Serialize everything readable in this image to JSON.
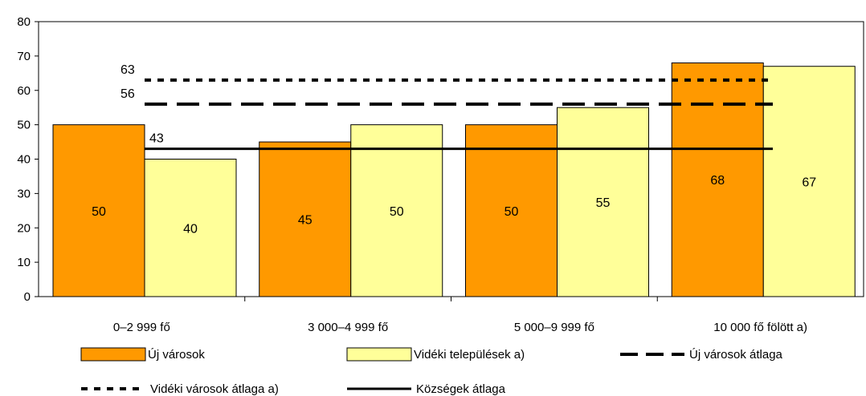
{
  "chart_data": {
    "type": "bar",
    "categories": [
      "0–2 999 fő",
      "3 000–4 999 fő",
      "5 000–9 999 fő",
      "10 000 fő fölött a)"
    ],
    "series": [
      {
        "name": "Új városok",
        "values": [
          50,
          45,
          50,
          68
        ],
        "color": "#ff9900",
        "data_labels": [
          "50",
          "45",
          "50",
          "68"
        ]
      },
      {
        "name": "Vidéki települések a)",
        "values": [
          40,
          50,
          55,
          67
        ],
        "color": "#ffff99",
        "data_labels": [
          "40",
          "50",
          "55",
          "67"
        ]
      }
    ],
    "reference_lines": [
      {
        "name": "Új városok átlaga",
        "value": 56,
        "label": "56",
        "style": "dashed"
      },
      {
        "name": "Vidéki városok átlaga a)",
        "value": 63,
        "label": "63",
        "style": "dotted"
      },
      {
        "name": "Községek átlaga",
        "value": 43,
        "label": "43",
        "style": "solid"
      }
    ],
    "y_ticks": [
      "0",
      "10",
      "20",
      "30",
      "40",
      "50",
      "60",
      "70",
      "80"
    ],
    "ylim": [
      0,
      80
    ],
    "grid": false,
    "legend_position": "bottom",
    "title": "",
    "xlabel": "",
    "ylabel": ""
  }
}
